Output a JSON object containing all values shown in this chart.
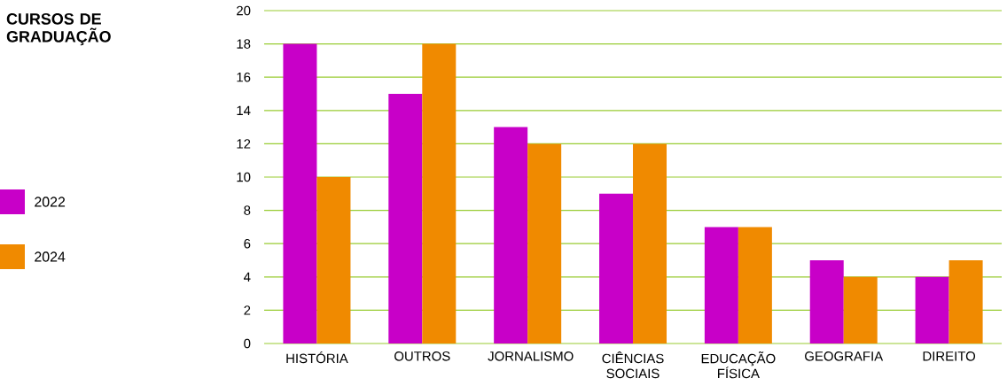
{
  "chart_data": {
    "type": "bar",
    "title": "CURSOS DE GRADUAÇÃO",
    "categories": [
      "HISTÓRIA",
      "OUTROS",
      "JORNALISMO",
      "CIÊNCIAS SOCIAIS",
      "EDUCAÇÃO FÍSICA",
      "GEOGRAFIA",
      "DIREITO"
    ],
    "series": [
      {
        "name": "2022",
        "color": "#c800c8",
        "values": [
          18,
          15,
          13,
          9,
          7,
          5,
          4
        ]
      },
      {
        "name": "2024",
        "color": "#f08a00",
        "values": [
          10,
          18,
          12,
          12,
          7,
          4,
          5
        ]
      }
    ],
    "ylim": [
      0,
      20
    ],
    "yticks": [
      0,
      2,
      4,
      6,
      8,
      10,
      12,
      14,
      16,
      18,
      20
    ],
    "grid": "y",
    "legend": "left"
  }
}
